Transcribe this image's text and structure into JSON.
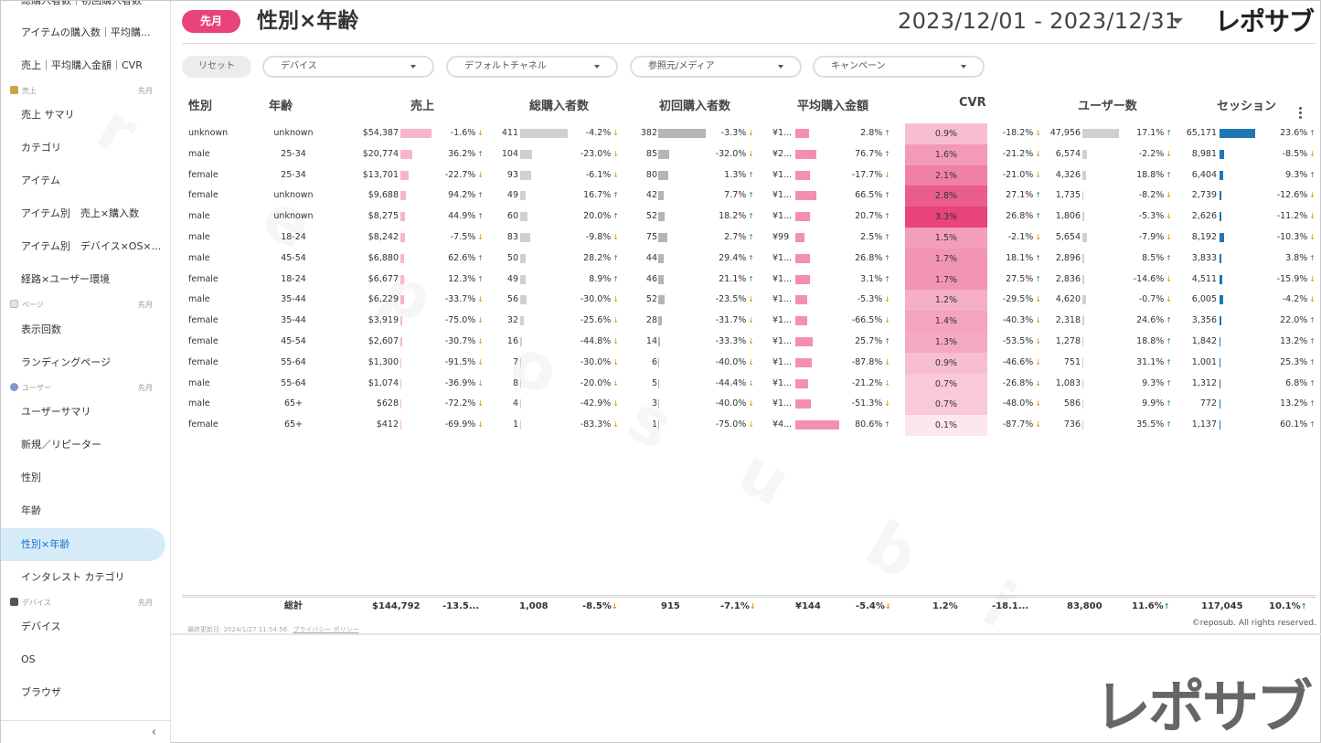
{
  "sidebar": {
    "top_partial": "総購入者数｜初回購入者数",
    "items": [
      {
        "label": "アイテムの購入数｜平均購..."
      },
      {
        "label": "売上｜平均購入金額｜CVR"
      },
      {
        "label": "売上 サマリ"
      },
      {
        "label": "カテゴリ"
      },
      {
        "label": "アイテム"
      },
      {
        "label": "アイテム別　売上×購入数"
      },
      {
        "label": "アイテム別　デバイス×OS×..."
      },
      {
        "label": "経路×ユーザー環境"
      },
      {
        "label": "表示回数"
      },
      {
        "label": "ランディングページ"
      },
      {
        "label": "ユーザーサマリ"
      },
      {
        "label": "新規／リピーター"
      },
      {
        "label": "性別"
      },
      {
        "label": "年齢"
      },
      {
        "label": "性別×年齢"
      },
      {
        "label": "インタレスト カテゴリ"
      },
      {
        "label": "デバイス"
      },
      {
        "label": "OS"
      },
      {
        "label": "ブラウザ"
      }
    ],
    "sections": [
      {
        "label": "売上",
        "period": "先月"
      },
      {
        "label": "ページ",
        "period": "先月"
      },
      {
        "label": "ユーザー",
        "period": "先月"
      },
      {
        "label": "デバイス",
        "period": "先月"
      }
    ],
    "collapse_glyph": "‹"
  },
  "header": {
    "period": "先月",
    "title": "性別×年齢",
    "date_range": "2023/12/01 - 2023/12/31",
    "logo": "レポサブ"
  },
  "filters": {
    "reset": "リセット",
    "device": "デバイス",
    "channel": "デフォルトチャネル",
    "source": "参照元/メディア",
    "campaign": "キャンペーン"
  },
  "table": {
    "headers": {
      "gender": "性別",
      "age": "年齢",
      "sales": "売上",
      "buyers": "総購入者数",
      "first_buyers": "初回購入者数",
      "avg_amount": "平均購入金額",
      "cvr": "CVR",
      "users": "ユーザー数",
      "sessions": "セッション"
    },
    "rows": [
      {
        "gender": "unknown",
        "age": "unknown",
        "sales": "$54,387",
        "sales_v": 54387,
        "sales_d": "-1.6%",
        "sales_up": false,
        "buyers": "411",
        "buyers_v": 411,
        "buyers_d": "-4.2%",
        "buyers_up": false,
        "first": "382",
        "first_v": 382,
        "first_d": "-3.3%",
        "first_up": false,
        "avg": "¥1...",
        "avg_v": 0.32,
        "avg_d": "2.8%",
        "avg_up": true,
        "cvr": "0.9%",
        "cvr_v": 0.9,
        "cvr_d": "-18.2%",
        "cvr_up": false,
        "users": "47,956",
        "users_v": 47956,
        "users_d": "17.1%",
        "users_up": true,
        "sess": "65,171",
        "sess_v": 65171,
        "sess_d": "23.6%",
        "sess_up": true
      },
      {
        "gender": "male",
        "age": "25-34",
        "sales": "$20,774",
        "sales_v": 20774,
        "sales_d": "36.2%",
        "sales_up": true,
        "buyers": "104",
        "buyers_v": 104,
        "buyers_d": "-23.0%",
        "buyers_up": false,
        "first": "85",
        "first_v": 85,
        "first_d": "-32.0%",
        "first_up": false,
        "avg": "¥2...",
        "avg_v": 0.48,
        "avg_d": "76.7%",
        "avg_up": true,
        "cvr": "1.6%",
        "cvr_v": 1.6,
        "cvr_d": "-21.2%",
        "cvr_up": false,
        "users": "6,574",
        "users_v": 6574,
        "users_d": "-2.2%",
        "users_up": false,
        "sess": "8,981",
        "sess_v": 8981,
        "sess_d": "-8.5%",
        "sess_up": false
      },
      {
        "gender": "female",
        "age": "25-34",
        "sales": "$13,701",
        "sales_v": 13701,
        "sales_d": "-22.7%",
        "sales_up": false,
        "buyers": "93",
        "buyers_v": 93,
        "buyers_d": "-6.1%",
        "buyers_up": false,
        "first": "80",
        "first_v": 80,
        "first_d": "1.3%",
        "first_up": true,
        "avg": "¥1...",
        "avg_v": 0.34,
        "avg_d": "-17.7%",
        "avg_up": false,
        "cvr": "2.1%",
        "cvr_v": 2.1,
        "cvr_d": "-21.0%",
        "cvr_up": false,
        "users": "4,326",
        "users_v": 4326,
        "users_d": "18.8%",
        "users_up": true,
        "sess": "6,404",
        "sess_v": 6404,
        "sess_d": "9.3%",
        "sess_up": true
      },
      {
        "gender": "female",
        "age": "unknown",
        "sales": "$9,688",
        "sales_v": 9688,
        "sales_d": "94.2%",
        "sales_up": true,
        "buyers": "49",
        "buyers_v": 49,
        "buyers_d": "16.7%",
        "buyers_up": true,
        "first": "42",
        "first_v": 42,
        "first_d": "7.7%",
        "first_up": true,
        "avg": "¥1...",
        "avg_v": 0.47,
        "avg_d": "66.5%",
        "avg_up": true,
        "cvr": "2.8%",
        "cvr_v": 2.8,
        "cvr_d": "27.1%",
        "cvr_up": true,
        "users": "1,735",
        "users_v": 1735,
        "users_d": "-8.2%",
        "users_up": false,
        "sess": "2,739",
        "sess_v": 2739,
        "sess_d": "-12.6%",
        "sess_up": false
      },
      {
        "gender": "male",
        "age": "unknown",
        "sales": "$8,275",
        "sales_v": 8275,
        "sales_d": "44.9%",
        "sales_up": true,
        "buyers": "60",
        "buyers_v": 60,
        "buyers_d": "20.0%",
        "buyers_up": true,
        "first": "52",
        "first_v": 52,
        "first_d": "18.2%",
        "first_up": true,
        "avg": "¥1...",
        "avg_v": 0.33,
        "avg_d": "20.7%",
        "avg_up": true,
        "cvr": "3.3%",
        "cvr_v": 3.3,
        "cvr_d": "26.8%",
        "cvr_up": true,
        "users": "1,806",
        "users_v": 1806,
        "users_d": "-5.3%",
        "users_up": false,
        "sess": "2,626",
        "sess_v": 2626,
        "sess_d": "-11.2%",
        "sess_up": false
      },
      {
        "gender": "male",
        "age": "18-24",
        "sales": "$8,242",
        "sales_v": 8242,
        "sales_d": "-7.5%",
        "sales_up": false,
        "buyers": "83",
        "buyers_v": 83,
        "buyers_d": "-9.8%",
        "buyers_up": false,
        "first": "75",
        "first_v": 75,
        "first_d": "2.7%",
        "first_up": true,
        "avg": "¥99",
        "avg_v": 0.2,
        "avg_d": "2.5%",
        "avg_up": true,
        "cvr": "1.5%",
        "cvr_v": 1.5,
        "cvr_d": "-2.1%",
        "cvr_up": false,
        "users": "5,654",
        "users_v": 5654,
        "users_d": "-7.9%",
        "users_up": false,
        "sess": "8,192",
        "sess_v": 8192,
        "sess_d": "-10.3%",
        "sess_up": false
      },
      {
        "gender": "male",
        "age": "45-54",
        "sales": "$6,880",
        "sales_v": 6880,
        "sales_d": "62.6%",
        "sales_up": true,
        "buyers": "50",
        "buyers_v": 50,
        "buyers_d": "28.2%",
        "buyers_up": true,
        "first": "44",
        "first_v": 44,
        "first_d": "29.4%",
        "first_up": true,
        "avg": "¥1...",
        "avg_v": 0.33,
        "avg_d": "26.8%",
        "avg_up": true,
        "cvr": "1.7%",
        "cvr_v": 1.7,
        "cvr_d": "18.1%",
        "cvr_up": true,
        "users": "2,896",
        "users_v": 2896,
        "users_d": "8.5%",
        "users_up": true,
        "sess": "3,833",
        "sess_v": 3833,
        "sess_d": "3.8%",
        "sess_up": true
      },
      {
        "gender": "female",
        "age": "18-24",
        "sales": "$6,677",
        "sales_v": 6677,
        "sales_d": "12.3%",
        "sales_up": true,
        "buyers": "49",
        "buyers_v": 49,
        "buyers_d": "8.9%",
        "buyers_up": true,
        "first": "46",
        "first_v": 46,
        "first_d": "21.1%",
        "first_up": true,
        "avg": "¥1...",
        "avg_v": 0.33,
        "avg_d": "3.1%",
        "avg_up": true,
        "cvr": "1.7%",
        "cvr_v": 1.7,
        "cvr_d": "27.5%",
        "cvr_up": true,
        "users": "2,836",
        "users_v": 2836,
        "users_d": "-14.6%",
        "users_up": false,
        "sess": "4,511",
        "sess_v": 4511,
        "sess_d": "-15.9%",
        "sess_up": false
      },
      {
        "gender": "male",
        "age": "35-44",
        "sales": "$6,229",
        "sales_v": 6229,
        "sales_d": "-33.7%",
        "sales_up": false,
        "buyers": "56",
        "buyers_v": 56,
        "buyers_d": "-30.0%",
        "buyers_up": false,
        "first": "52",
        "first_v": 52,
        "first_d": "-23.5%",
        "first_up": false,
        "avg": "¥1...",
        "avg_v": 0.27,
        "avg_d": "-5.3%",
        "avg_up": false,
        "cvr": "1.2%",
        "cvr_v": 1.2,
        "cvr_d": "-29.5%",
        "cvr_up": false,
        "users": "4,620",
        "users_v": 4620,
        "users_d": "-0.7%",
        "users_up": false,
        "sess": "6,005",
        "sess_v": 6005,
        "sess_d": "-4.2%",
        "sess_up": false
      },
      {
        "gender": "female",
        "age": "35-44",
        "sales": "$3,919",
        "sales_v": 3919,
        "sales_d": "-75.0%",
        "sales_up": false,
        "buyers": "32",
        "buyers_v": 32,
        "buyers_d": "-25.6%",
        "buyers_up": false,
        "first": "28",
        "first_v": 28,
        "first_d": "-31.7%",
        "first_up": false,
        "avg": "¥1...",
        "avg_v": 0.28,
        "avg_d": "-66.5%",
        "avg_up": false,
        "cvr": "1.4%",
        "cvr_v": 1.4,
        "cvr_d": "-40.3%",
        "cvr_up": false,
        "users": "2,318",
        "users_v": 2318,
        "users_d": "24.6%",
        "users_up": true,
        "sess": "3,356",
        "sess_v": 3356,
        "sess_d": "22.0%",
        "sess_up": true
      },
      {
        "gender": "female",
        "age": "45-54",
        "sales": "$2,607",
        "sales_v": 2607,
        "sales_d": "-30.7%",
        "sales_up": false,
        "buyers": "16",
        "buyers_v": 16,
        "buyers_d": "-44.8%",
        "buyers_up": false,
        "first": "14",
        "first_v": 14,
        "first_d": "-33.3%",
        "first_up": false,
        "avg": "¥1...",
        "avg_v": 0.4,
        "avg_d": "25.7%",
        "avg_up": true,
        "cvr": "1.3%",
        "cvr_v": 1.3,
        "cvr_d": "-53.5%",
        "cvr_up": false,
        "users": "1,278",
        "users_v": 1278,
        "users_d": "18.8%",
        "users_up": true,
        "sess": "1,842",
        "sess_v": 1842,
        "sess_d": "13.2%",
        "sess_up": true
      },
      {
        "gender": "female",
        "age": "55-64",
        "sales": "$1,300",
        "sales_v": 1300,
        "sales_d": "-91.5%",
        "sales_up": false,
        "buyers": "7",
        "buyers_v": 7,
        "buyers_d": "-30.0%",
        "buyers_up": false,
        "first": "6",
        "first_v": 6,
        "first_d": "-40.0%",
        "first_up": false,
        "avg": "¥1...",
        "avg_v": 0.38,
        "avg_d": "-87.8%",
        "avg_up": false,
        "cvr": "0.9%",
        "cvr_v": 0.9,
        "cvr_d": "-46.6%",
        "cvr_up": false,
        "users": "751",
        "users_v": 751,
        "users_d": "31.1%",
        "users_up": true,
        "sess": "1,001",
        "sess_v": 1001,
        "sess_d": "25.3%",
        "sess_up": true
      },
      {
        "gender": "male",
        "age": "55-64",
        "sales": "$1,074",
        "sales_v": 1074,
        "sales_d": "-36.9%",
        "sales_up": false,
        "buyers": "8",
        "buyers_v": 8,
        "buyers_d": "-20.0%",
        "buyers_up": false,
        "first": "5",
        "first_v": 5,
        "first_d": "-44.4%",
        "first_up": false,
        "avg": "¥1...",
        "avg_v": 0.3,
        "avg_d": "-21.2%",
        "avg_up": false,
        "cvr": "0.7%",
        "cvr_v": 0.7,
        "cvr_d": "-26.8%",
        "cvr_up": false,
        "users": "1,083",
        "users_v": 1083,
        "users_d": "9.3%",
        "users_up": true,
        "sess": "1,312",
        "sess_v": 1312,
        "sess_d": "6.8%",
        "sess_up": true
      },
      {
        "gender": "male",
        "age": "65+",
        "sales": "$628",
        "sales_v": 628,
        "sales_d": "-72.2%",
        "sales_up": false,
        "buyers": "4",
        "buyers_v": 4,
        "buyers_d": "-42.9%",
        "buyers_up": false,
        "first": "3",
        "first_v": 3,
        "first_d": "-40.0%",
        "first_up": false,
        "avg": "¥1...",
        "avg_v": 0.36,
        "avg_d": "-51.3%",
        "avg_up": false,
        "cvr": "0.7%",
        "cvr_v": 0.7,
        "cvr_d": "-48.0%",
        "cvr_up": false,
        "users": "586",
        "users_v": 586,
        "users_d": "9.9%",
        "users_up": true,
        "sess": "772",
        "sess_v": 772,
        "sess_d": "13.2%",
        "sess_up": true
      },
      {
        "gender": "female",
        "age": "65+",
        "sales": "$412",
        "sales_v": 412,
        "sales_d": "-69.9%",
        "sales_up": false,
        "buyers": "1",
        "buyers_v": 1,
        "buyers_d": "-83.3%",
        "buyers_up": false,
        "first": "1",
        "first_v": 1,
        "first_d": "-75.0%",
        "first_up": false,
        "avg": "¥4...",
        "avg_v": 1.0,
        "avg_d": "80.6%",
        "avg_up": true,
        "cvr": "0.1%",
        "cvr_v": 0.1,
        "cvr_d": "-87.7%",
        "cvr_up": false,
        "users": "736",
        "users_v": 736,
        "users_d": "35.5%",
        "users_up": true,
        "sess": "1,137",
        "sess_v": 1137,
        "sess_d": "60.1%",
        "sess_up": true
      }
    ],
    "totals": {
      "label": "総計",
      "sales": "$144,792",
      "sales_d": "-13.5...",
      "buyers": "1,008",
      "buyers_d": "-8.5%",
      "first": "915",
      "first_d": "-7.1%",
      "avg": "¥144",
      "avg_d": "-5.4%",
      "cvr": "1.2%",
      "cvr_d": "-18.1...",
      "users": "83,800",
      "users_d": "11.6%",
      "sess": "117,045",
      "sess_d": "10.1%"
    }
  },
  "footer": {
    "updated": "最終更新日: 2024/1/27 11:54:56",
    "privacy": "プライバシー ポリシー",
    "copyright": "©reposub. All rights reserved."
  },
  "colors": {
    "accent": "#e8437a",
    "bar_sales": "#f7b6cb",
    "bar_gray": "#d0d0d0",
    "bar_pink": "#f48fb1",
    "bar_blue": "#1f77b4",
    "active_bg": "#d6ebf8"
  },
  "icons": {
    "up": "↑",
    "down": "↓",
    "kebab": "more-vert-icon"
  },
  "logo_big": "レポサブ"
}
